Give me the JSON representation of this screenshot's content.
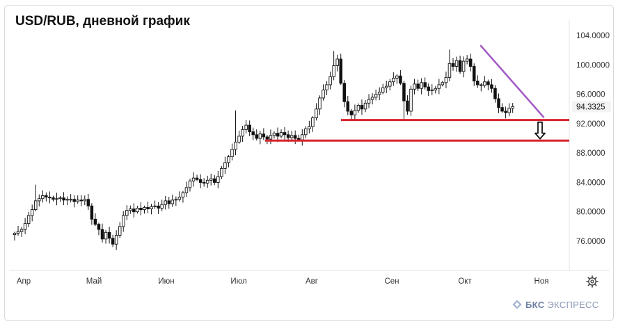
{
  "chart_data": {
    "type": "candlestick",
    "title": "USD/RUB, дневной график",
    "ylim": [
      72.5,
      106
    ],
    "y_ticks": [
      "104.0000",
      "100.0000",
      "96.0000",
      "92.0000",
      "88.0000",
      "84.0000",
      "80.0000",
      "76.0000"
    ],
    "current_price_label": "94.3325",
    "current_price": 94.33,
    "x_labels": [
      "Апр",
      "Май",
      "Июн",
      "Июл",
      "Авг",
      "Сен",
      "Окт",
      "Ноя"
    ],
    "grid": false,
    "closes": [
      77.1,
      77.3,
      77.6,
      78.4,
      79.5,
      80.3,
      81.5,
      81.8,
      82.2,
      82.0,
      81.9,
      81.7,
      81.8,
      81.9,
      81.6,
      81.7,
      81.7,
      81.4,
      81.6,
      81.5,
      81.7,
      80.8,
      79.0,
      78.3,
      77.6,
      76.3,
      77.2,
      76.4,
      75.6,
      76.8,
      78.0,
      79.5,
      80.2,
      80.4,
      80.0,
      80.5,
      80.3,
      80.6,
      80.4,
      80.7,
      80.8,
      80.5,
      81.0,
      81.5,
      81.1,
      81.6,
      81.7,
      82.0,
      82.6,
      83.3,
      84.2,
      84.6,
      84.4,
      84.0,
      83.9,
      84.3,
      84.5,
      84.0,
      84.8,
      85.9,
      86.7,
      87.5,
      88.5,
      89.5,
      90.3,
      91.2,
      91.8,
      90.9,
      90.5,
      90.0,
      90.6,
      90.2,
      89.9,
      90.4,
      90.7,
      90.3,
      90.8,
      90.5,
      90.1,
      90.4,
      90.0,
      89.8,
      90.5,
      91.3,
      91.6,
      92.8,
      94.0,
      95.5,
      96.6,
      97.3,
      98.4,
      99.9,
      100.8,
      97.5,
      95.0,
      93.7,
      93.2,
      93.8,
      94.5,
      94.0,
      94.8,
      95.3,
      95.6,
      96.0,
      96.3,
      96.9,
      97.1,
      97.7,
      98.2,
      98.5,
      97.5,
      95.1,
      93.7,
      96.7,
      97.4,
      96.8,
      97.6,
      97.0,
      96.5,
      96.6,
      96.8,
      97.3,
      97.6,
      98.3,
      100.2,
      99.8,
      100.6,
      99.1,
      100.5,
      100.8,
      99.8,
      97.8,
      97.3,
      97.2,
      97.7,
      97.3,
      96.8,
      95.4,
      94.2,
      93.7,
      93.5,
      94.1,
      94.33
    ],
    "support_lines": [
      92.5,
      89.7
    ],
    "resistance_line": {
      "from": {
        "x": "10 окт",
        "y": 102.6
      },
      "to": {
        "x": "3 ноя",
        "y": 92.9
      }
    },
    "arrow": "down"
  },
  "brand": {
    "bold": "БКС",
    "name": "ЭКСПРЕСС"
  },
  "colors": {
    "candle": "#111111",
    "support": "#d8232a",
    "trend": "#a45bc6",
    "axis_text": "#333333",
    "separator": "#e3e3e3",
    "price_tag_bg": "#f3f3f3"
  },
  "icons": {
    "settings": "gear-icon",
    "brand": "bks-logo-icon",
    "arrow": "down-arrow-icon"
  }
}
